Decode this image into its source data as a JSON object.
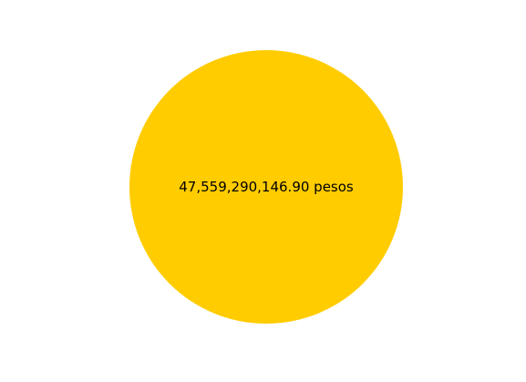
{
  "chart_data": {
    "type": "pie",
    "title": "",
    "slices": [
      {
        "label": "47,559,290,146.90 pesos",
        "value": 47559290146.9,
        "color": "#FFCC00"
      }
    ],
    "legend": "none"
  }
}
